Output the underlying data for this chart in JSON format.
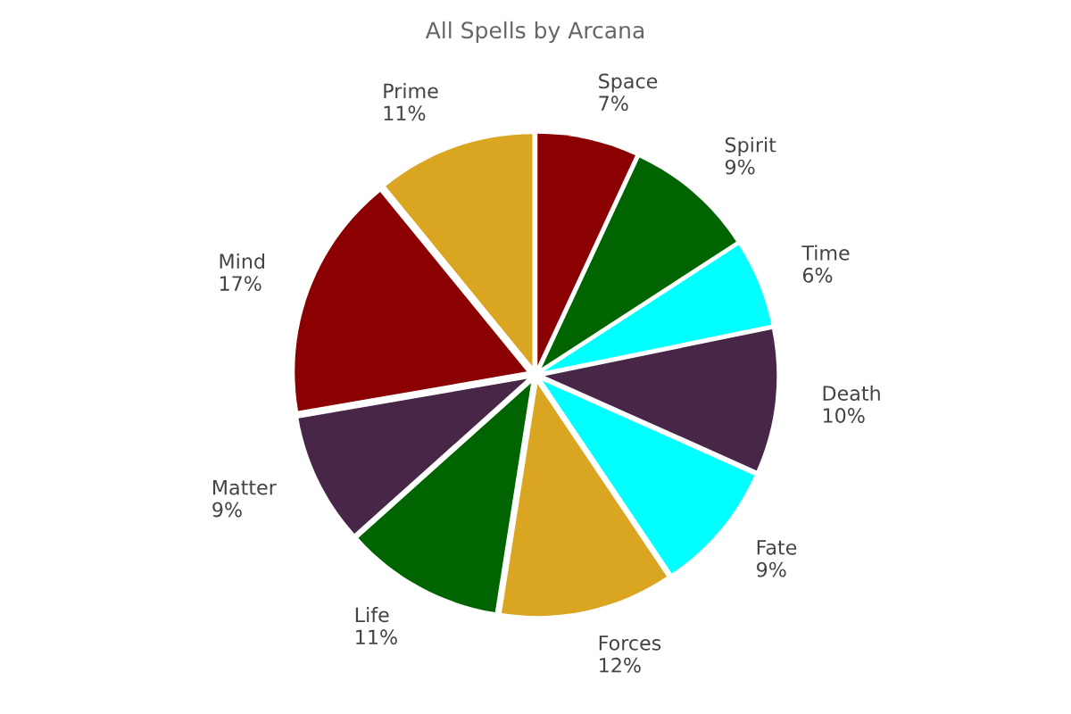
{
  "chart_data": {
    "type": "pie",
    "title": "All Spells by Arcana",
    "categories": [
      "Space",
      "Spirit",
      "Time",
      "Death",
      "Fate",
      "Forces",
      "Life",
      "Matter",
      "Mind",
      "Prime"
    ],
    "values": [
      7,
      9,
      6,
      10,
      9,
      12,
      11,
      9,
      17,
      11
    ],
    "value_labels": [
      "7%",
      "9%",
      "6%",
      "10%",
      "9%",
      "12%",
      "11%",
      "9%",
      "17%",
      "11%"
    ],
    "colors": [
      "#8b0000",
      "#006400",
      "#00ffff",
      "#482648",
      "#00ffff",
      "#daa520",
      "#006400",
      "#482648",
      "#8b0000",
      "#daa520"
    ]
  }
}
